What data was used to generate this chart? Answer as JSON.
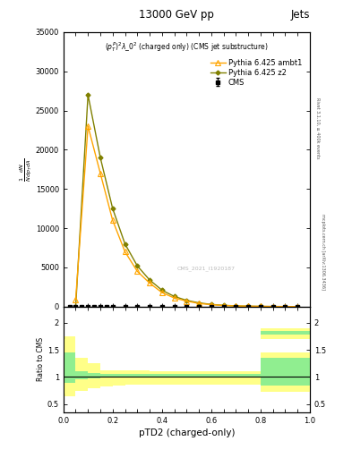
{
  "title": "13000 GeV pp",
  "title_right": "Jets",
  "subtitle": "$(p_T^P)^2\\lambda\\_0^2$ (charged only) (CMS jet substructure)",
  "watermark": "CMS_2021_I1920187",
  "rivet_label": "Rivet 3.1.10, ≥ 400k events",
  "arxiv_label": "mcplots.cern.ch [arXiv:1306.3436]",
  "xlabel": "pTD2 (charged-only)",
  "xlim": [
    0,
    1.0
  ],
  "ylim": [
    0,
    35000
  ],
  "ytick_positions": [
    0,
    5000,
    10000,
    15000,
    20000,
    25000,
    30000,
    35000
  ],
  "ytick_labels": [
    "0",
    "5000",
    "10000",
    "15000",
    "20000",
    "25000",
    "30000",
    "35000"
  ],
  "cms_x": [
    0.025,
    0.05,
    0.075,
    0.1,
    0.125,
    0.15,
    0.175,
    0.2,
    0.25,
    0.3,
    0.35,
    0.4,
    0.45,
    0.5,
    0.55,
    0.6,
    0.65,
    0.7,
    0.75,
    0.8,
    0.85,
    0.9,
    0.95
  ],
  "cms_y": [
    0,
    0,
    0,
    0,
    0,
    0,
    0,
    0,
    0,
    0,
    0,
    0,
    0,
    0,
    0,
    0,
    0,
    0,
    0,
    0,
    0,
    0,
    0
  ],
  "cms_yerr": [
    50,
    50,
    50,
    50,
    50,
    50,
    50,
    50,
    50,
    50,
    50,
    50,
    50,
    50,
    50,
    50,
    50,
    50,
    50,
    50,
    50,
    50,
    50
  ],
  "ambt1_x": [
    0.05,
    0.1,
    0.15,
    0.2,
    0.25,
    0.3,
    0.35,
    0.4,
    0.45,
    0.5,
    0.55,
    0.6,
    0.65,
    0.7,
    0.75,
    0.8,
    0.85,
    0.9,
    0.95
  ],
  "ambt1_y": [
    900,
    23000,
    17000,
    11000,
    7000,
    4500,
    3000,
    1800,
    1100,
    700,
    400,
    250,
    140,
    80,
    50,
    30,
    15,
    8,
    4
  ],
  "z2_x": [
    0.05,
    0.1,
    0.15,
    0.2,
    0.25,
    0.3,
    0.35,
    0.4,
    0.45,
    0.5,
    0.55,
    0.6,
    0.65,
    0.7,
    0.75,
    0.8,
    0.85,
    0.9,
    0.95
  ],
  "z2_y": [
    0,
    27000,
    19000,
    12500,
    8000,
    5200,
    3400,
    2100,
    1300,
    800,
    480,
    280,
    165,
    95,
    55,
    33,
    17,
    9,
    4
  ],
  "cms_color": "#000000",
  "ambt1_color": "#FFA500",
  "z2_color": "#808000",
  "ratio_xlim": [
    0,
    1.0
  ],
  "ratio_ylim": [
    0.35,
    2.3
  ],
  "ratio_yticks": [
    0.5,
    1.0,
    1.5,
    2.0
  ],
  "ratio_ylabel": "Ratio to CMS",
  "bin_edges": [
    0.0,
    0.05,
    0.1,
    0.15,
    0.2,
    0.25,
    0.3,
    0.35,
    0.4,
    0.45,
    0.5,
    0.55,
    0.6,
    0.65,
    0.7,
    0.75,
    0.8,
    0.85,
    0.9,
    0.95,
    1.0
  ],
  "ambt1_outer_lo": [
    0.65,
    0.75,
    0.8,
    0.82,
    0.84,
    0.86,
    0.86,
    0.86,
    0.86,
    0.86,
    0.86,
    0.86,
    0.86,
    0.86,
    0.86,
    0.86,
    1.7,
    1.7,
    1.7,
    1.7
  ],
  "ambt1_outer_hi": [
    1.75,
    1.35,
    1.25,
    1.12,
    1.12,
    1.12,
    1.12,
    1.1,
    1.1,
    1.1,
    1.1,
    1.1,
    1.1,
    1.1,
    1.1,
    1.1,
    1.9,
    1.9,
    1.9,
    1.9
  ],
  "ambt1_inner_lo": [
    0.85,
    0.88,
    0.88,
    0.9,
    0.9,
    0.92,
    0.92,
    0.92,
    0.92,
    0.92,
    0.92,
    0.92,
    0.92,
    0.92,
    0.92,
    0.92,
    1.78,
    1.78,
    1.78,
    1.78
  ],
  "ambt1_inner_hi": [
    1.45,
    1.12,
    1.08,
    1.0,
    1.0,
    1.0,
    1.0,
    1.0,
    1.0,
    1.0,
    1.0,
    1.0,
    1.0,
    1.0,
    1.0,
    1.0,
    1.85,
    1.85,
    1.85,
    1.85
  ],
  "z2_outer_lo": [
    0.7,
    0.85,
    0.88,
    0.9,
    0.9,
    0.9,
    0.9,
    0.9,
    0.9,
    0.9,
    0.9,
    0.9,
    0.9,
    0.9,
    0.9,
    0.9,
    0.72,
    0.72,
    0.72,
    0.72
  ],
  "z2_outer_hi": [
    1.7,
    1.2,
    1.15,
    1.1,
    1.1,
    1.1,
    1.1,
    1.1,
    1.1,
    1.1,
    1.1,
    1.1,
    1.1,
    1.1,
    1.1,
    1.1,
    1.45,
    1.45,
    1.45,
    1.45
  ],
  "z2_inner_lo": [
    0.9,
    0.95,
    0.98,
    1.0,
    1.0,
    1.0,
    1.0,
    1.0,
    1.0,
    1.0,
    1.0,
    1.0,
    1.0,
    1.0,
    1.0,
    1.0,
    0.85,
    0.85,
    0.85,
    0.85
  ],
  "z2_inner_hi": [
    1.45,
    1.1,
    1.08,
    1.05,
    1.05,
    1.05,
    1.05,
    1.05,
    1.05,
    1.05,
    1.05,
    1.05,
    1.05,
    1.05,
    1.05,
    1.05,
    1.35,
    1.35,
    1.35,
    1.35
  ],
  "green_color": "#90EE90",
  "yellow_color": "#FFFF88",
  "background_color": "#ffffff"
}
